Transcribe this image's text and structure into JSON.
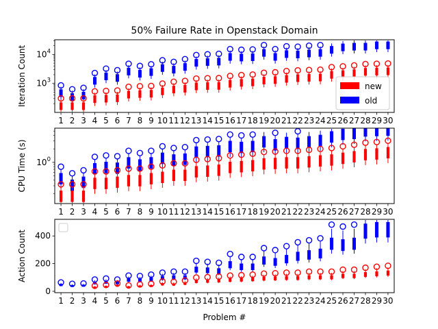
{
  "figure": {
    "title": "50% Failure Rate in Openstack Domain",
    "xlabel": "Problem #"
  },
  "colors": {
    "new": "#ff0000",
    "old": "#0000ff"
  },
  "chart_data": [
    {
      "type": "box",
      "ylabel": "Iteration Count",
      "yscale": "log",
      "ylim": [
        100,
        32000
      ],
      "ytick_labels": [
        {
          "value": 1000,
          "base": "10",
          "exp": "3"
        },
        {
          "value": 10000,
          "base": "10",
          "exp": "4"
        }
      ],
      "legend": {
        "placement": "lower-right",
        "entries": [
          "new",
          "old"
        ]
      },
      "categories": [
        "1",
        "2",
        "3",
        "4",
        "5",
        "6",
        "7",
        "8",
        "9",
        "10",
        "11",
        "12",
        "13",
        "14",
        "15",
        "16",
        "17",
        "18",
        "19",
        "20",
        "21",
        "22",
        "23",
        "24",
        "25",
        "26",
        "27",
        "28",
        "29",
        "30"
      ],
      "series": [
        {
          "name": "new",
          "color_key": "new",
          "values": [
            160,
            160,
            160,
            280,
            290,
            300,
            400,
            420,
            430,
            520,
            600,
            640,
            770,
            790,
            800,
            950,
            1020,
            1060,
            1220,
            1270,
            1400,
            1480,
            1520,
            1560,
            1920,
            2040,
            2200,
            2450,
            2500,
            2550
          ]
        },
        {
          "name": "old",
          "color_key": "old",
          "values": [
            450,
            330,
            370,
            1200,
            1700,
            1500,
            2500,
            2100,
            2400,
            3300,
            2900,
            3600,
            5000,
            5300,
            5500,
            8000,
            7600,
            7800,
            11000,
            8000,
            10000,
            9700,
            10500,
            11000,
            14000,
            17000,
            18000,
            18000,
            20000,
            20000
          ]
        }
      ]
    },
    {
      "type": "box",
      "ylabel": "CPU Time (s)",
      "yscale": "log",
      "ylim": [
        0.12,
        5.8
      ],
      "ytick_labels": [
        {
          "value": 1,
          "base": "10",
          "exp": "0"
        }
      ],
      "legend": null,
      "categories": [
        "1",
        "2",
        "3",
        "4",
        "5",
        "6",
        "7",
        "8",
        "9",
        "10",
        "11",
        "12",
        "13",
        "14",
        "15",
        "16",
        "17",
        "18",
        "19",
        "20",
        "21",
        "22",
        "23",
        "24",
        "25",
        "26",
        "27",
        "28",
        "29",
        "30"
      ],
      "series": [
        {
          "name": "new",
          "color_key": "new",
          "values": [
            0.17,
            0.17,
            0.17,
            0.33,
            0.33,
            0.35,
            0.38,
            0.38,
            0.42,
            0.45,
            0.5,
            0.5,
            0.6,
            0.62,
            0.65,
            0.75,
            0.78,
            0.82,
            0.9,
            0.92,
            0.95,
            0.95,
            1.0,
            1.05,
            1.1,
            1.2,
            1.3,
            1.45,
            1.5,
            1.6
          ]
        },
        {
          "name": "old",
          "color_key": "old",
          "values": [
            0.42,
            0.3,
            0.35,
            0.7,
            0.75,
            0.72,
            0.95,
            0.85,
            0.95,
            1.2,
            1.1,
            1.15,
            1.65,
            1.7,
            1.75,
            2.2,
            2.1,
            2.2,
            2.8,
            2.4,
            2.7,
            2.6,
            2.8,
            3.0,
            3.6,
            4.1,
            4.3,
            4.9,
            5.0,
            5.1
          ]
        }
      ]
    },
    {
      "type": "box",
      "ylabel": "Action Count",
      "yscale": "linear",
      "ylim": [
        -10,
        520
      ],
      "yticks": [
        0,
        200,
        400
      ],
      "legend": {
        "placement": "upper-left",
        "entries": []
      },
      "categories": [
        "1",
        "2",
        "3",
        "4",
        "5",
        "6",
        "7",
        "8",
        "9",
        "10",
        "11",
        "12",
        "13",
        "14",
        "15",
        "16",
        "17",
        "18",
        "19",
        "20",
        "21",
        "22",
        "23",
        "24",
        "25",
        "26",
        "27",
        "28",
        "29",
        "30"
      ],
      "series": [
        {
          "name": "new",
          "color_key": "new",
          "values": [
            null,
            null,
            null,
            28,
            32,
            40,
            30,
            35,
            38,
            50,
            48,
            55,
            70,
            72,
            75,
            80,
            82,
            85,
            90,
            92,
            95,
            95,
            100,
            100,
            100,
            110,
            110,
            120,
            125,
            130
          ]
        },
        {
          "name": "old",
          "color_key": "old",
          "values": [
            45,
            38,
            40,
            60,
            65,
            60,
            80,
            78,
            85,
            95,
            100,
            100,
            155,
            150,
            145,
            190,
            175,
            175,
            220,
            210,
            230,
            250,
            260,
            270,
            340,
            330,
            340,
            430,
            440,
            440
          ]
        }
      ]
    }
  ]
}
